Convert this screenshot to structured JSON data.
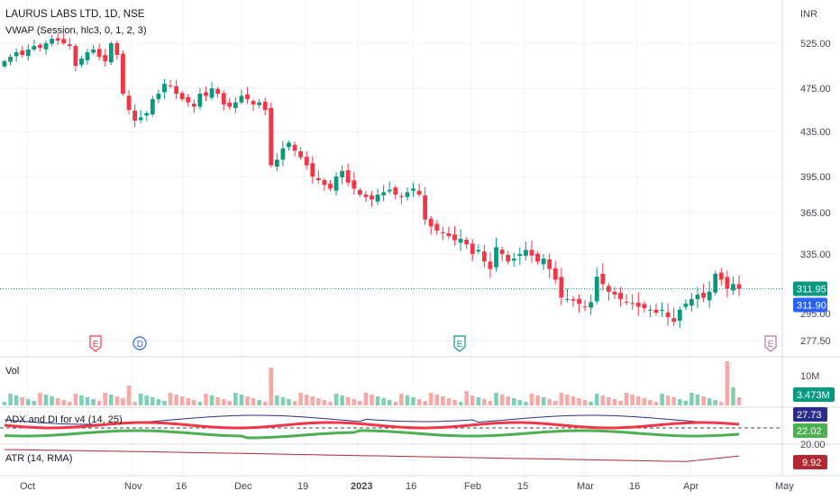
{
  "header": {
    "symbol_title": "LAURUS LABS LTD, 1D, NSE",
    "vwap_label": "VWAP (Session, hlc3, 0, 1, 2, 3)",
    "currency": "INR"
  },
  "panes": {
    "vol_label": "Vol",
    "adx_label": "ADX and DI for v4 (14, 25)",
    "atr_label": "ATR (14, RMA)"
  },
  "chart_data": {
    "type": "candlestick",
    "price_axis_ticks": [
      "525.00",
      "475.00",
      "435.00",
      "395.00",
      "365.00",
      "335.00",
      "277.50"
    ],
    "time_axis_ticks": [
      "Oct",
      "Nov",
      "16",
      "Dec",
      "19",
      "2023",
      "16",
      "Feb",
      "15",
      "Mar",
      "16",
      "Apr",
      "May"
    ],
    "last_price": "311.95",
    "vwap_value": "311.90",
    "volume_value": "3.473M",
    "volume_axis_tick": "10M",
    "adx_values": {
      "adx": "27.73",
      "di": "22.02"
    },
    "adx_axis_tick": "20.00",
    "atr_value": "9.92",
    "partial_price_label": "295.00",
    "events": [
      {
        "letter": "E",
        "color": "#f23645"
      },
      {
        "letter": "D",
        "color": "#2962ff"
      },
      {
        "letter": "E",
        "color": "#089981"
      },
      {
        "letter": "E",
        "color": "#b07a9e"
      }
    ],
    "closes": [
      505,
      510,
      515,
      512,
      518,
      522,
      520,
      525,
      530,
      528,
      525,
      522,
      500,
      508,
      515,
      518,
      510,
      505,
      525,
      512,
      470,
      455,
      445,
      448,
      452,
      465,
      470,
      480,
      478,
      470,
      465,
      462,
      458,
      470,
      468,
      475,
      470,
      460,
      458,
      462,
      468,
      465,
      460,
      462,
      455,
      405,
      410,
      420,
      425,
      418,
      412,
      405,
      395,
      392,
      388,
      385,
      395,
      400,
      390,
      385,
      380,
      378,
      376,
      380,
      382,
      384,
      380,
      378,
      382,
      385,
      380,
      360,
      355,
      352,
      350,
      348,
      345,
      346,
      342,
      335,
      338,
      330,
      325,
      340,
      335,
      330,
      332,
      335,
      338,
      334,
      330,
      332,
      325,
      318,
      306,
      305,
      304,
      302,
      300,
      303,
      320,
      315,
      310,
      308,
      305,
      303,
      302,
      300,
      299,
      298,
      296,
      298,
      293,
      290,
      298,
      302,
      305,
      308,
      306,
      310,
      322,
      318,
      312,
      315,
      311.95
    ],
    "ohlc_sample_note": ""
  },
  "colors": {
    "up": "#089981",
    "down": "#f23645",
    "vol_up": "#7dcfb6",
    "vol_down": "#f7a9a7",
    "vwap_tag": "#2962ff",
    "adx_line": "#2a2e8a",
    "di_plus": "#4caf50",
    "di_minus": "#f23645",
    "atr_line": "#b22833"
  }
}
